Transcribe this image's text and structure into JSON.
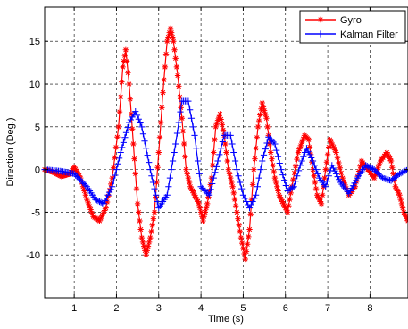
{
  "chart_data": {
    "type": "line",
    "title": "",
    "xlabel": "Time (s)",
    "ylabel": "Direction (Deg.)",
    "xlim": [
      0.3,
      8.9
    ],
    "ylim": [
      -15,
      19
    ],
    "xticks": [
      1,
      2,
      3,
      4,
      5,
      6,
      7,
      8
    ],
    "xtick_labels": [
      "1",
      "2",
      "3",
      "4",
      "5",
      "6",
      "7",
      "8"
    ],
    "yticks": [
      -10,
      -5,
      0,
      5,
      10,
      15
    ],
    "ytick_labels": [
      "-10",
      "-5",
      "0",
      "5",
      "10",
      "15"
    ],
    "grid": true,
    "grid_style": "dashed",
    "legend_position": "top-right",
    "series": [
      {
        "name": "Gyro",
        "color": "#ff0000",
        "marker": "asterisk",
        "x": [
          0.3,
          0.5,
          0.7,
          0.9,
          1.0,
          1.15,
          1.3,
          1.45,
          1.6,
          1.75,
          1.9,
          2.05,
          2.15,
          2.22,
          2.3,
          2.4,
          2.5,
          2.6,
          2.7,
          2.8,
          2.9,
          3.0,
          3.1,
          3.2,
          3.28,
          3.35,
          3.45,
          3.55,
          3.65,
          3.75,
          3.85,
          3.95,
          4.05,
          4.15,
          4.25,
          4.35,
          4.45,
          4.55,
          4.65,
          4.75,
          4.85,
          4.95,
          5.05,
          5.15,
          5.25,
          5.35,
          5.45,
          5.55,
          5.65,
          5.75,
          5.85,
          5.95,
          6.05,
          6.15,
          6.3,
          6.45,
          6.55,
          6.65,
          6.75,
          6.85,
          6.95,
          7.05,
          7.2,
          7.35,
          7.5,
          7.65,
          7.8,
          7.95,
          8.1,
          8.25,
          8.4,
          8.5,
          8.6,
          8.7,
          8.8,
          8.9
        ],
        "y": [
          0,
          -0.3,
          -0.8,
          -0.5,
          0.3,
          -1.0,
          -3.5,
          -5.5,
          -6.0,
          -4.5,
          -1.0,
          5.0,
          12.0,
          14.0,
          10.0,
          3.0,
          -4.0,
          -8.0,
          -10.0,
          -8.0,
          -5.0,
          2.0,
          9.0,
          15.0,
          16.5,
          15.0,
          11.0,
          6.0,
          0.0,
          -2.0,
          -3.0,
          -4.0,
          -6.0,
          -4.0,
          -1.0,
          5.0,
          6.5,
          4.0,
          0.0,
          -2.0,
          -5.0,
          -8.0,
          -10.5,
          -7.0,
          0.0,
          5.0,
          7.8,
          6.0,
          2.0,
          -1.0,
          -3.0,
          -4.0,
          -5.0,
          -2.0,
          2.0,
          4.0,
          3.5,
          0.0,
          -3.0,
          -4.0,
          0.0,
          3.5,
          2.0,
          -1.0,
          -3.0,
          -2.0,
          1.0,
          0.0,
          -1.0,
          1.0,
          2.0,
          1.0,
          -2.0,
          -3.0,
          -5.0,
          -6.0
        ]
      },
      {
        "name": "Kalman Filter",
        "color": "#0000ff",
        "marker": "plus",
        "x": [
          0.3,
          0.7,
          1.0,
          1.3,
          1.5,
          1.7,
          1.9,
          2.1,
          2.3,
          2.45,
          2.6,
          2.8,
          3.0,
          3.2,
          3.4,
          3.55,
          3.7,
          3.85,
          4.0,
          4.2,
          4.4,
          4.55,
          4.7,
          4.85,
          5.0,
          5.15,
          5.3,
          5.45,
          5.6,
          5.75,
          5.9,
          6.05,
          6.2,
          6.35,
          6.5,
          6.65,
          6.8,
          6.95,
          7.1,
          7.3,
          7.5,
          7.7,
          7.9,
          8.1,
          8.3,
          8.5,
          8.7,
          8.9
        ],
        "y": [
          0,
          -0.2,
          -0.5,
          -2.0,
          -3.5,
          -4.0,
          -2.0,
          2.0,
          5.5,
          6.8,
          5.0,
          0.0,
          -4.5,
          -3.0,
          3.0,
          8.0,
          8.0,
          4.0,
          -2.0,
          -3.0,
          1.0,
          4.0,
          4.0,
          0.0,
          -3.0,
          -4.5,
          -3.0,
          1.0,
          3.8,
          3.0,
          0.0,
          -2.5,
          -2.0,
          0.5,
          2.5,
          1.0,
          -1.0,
          -2.0,
          0.5,
          -1.5,
          -2.8,
          -1.0,
          0.5,
          0.0,
          -1.0,
          -1.3,
          -0.5,
          0.0
        ]
      }
    ]
  }
}
